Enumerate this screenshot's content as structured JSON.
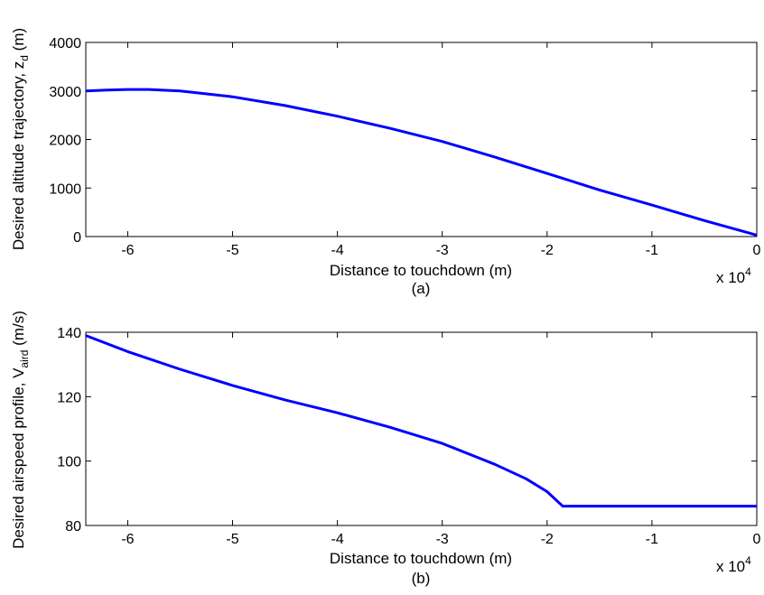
{
  "chart_data": [
    {
      "type": "line",
      "panel_label": "(a)",
      "xlabel": "Distance to touchdown (m)",
      "ylabel_main": "Desired altitude trajectory, z",
      "ylabel_sub": "d",
      "ylabel_unit": " (m)",
      "x_multiplier": "x 10",
      "x_multiplier_exp": "4",
      "xlim": [
        -6.4,
        0
      ],
      "ylim": [
        0,
        4000
      ],
      "xticks": [
        -6,
        -5,
        -4,
        -3,
        -2,
        -1,
        0
      ],
      "yticks": [
        0,
        1000,
        2000,
        3000,
        4000
      ],
      "grid": false,
      "series": [
        {
          "color": "#0000ff",
          "x": [
            -6.4,
            -6.2,
            -6.0,
            -5.8,
            -5.5,
            -5.0,
            -4.5,
            -4.0,
            -3.5,
            -3.0,
            -2.5,
            -2.0,
            -1.5,
            -1.0,
            -0.5,
            0.0
          ],
          "y": [
            3000,
            3020,
            3030,
            3030,
            3000,
            2880,
            2700,
            2480,
            2230,
            1960,
            1640,
            1300,
            960,
            650,
            330,
            30
          ]
        }
      ]
    },
    {
      "type": "line",
      "panel_label": "(b)",
      "xlabel": "Distance to touchdown (m)",
      "ylabel_main": "Desired airspeed profile, V",
      "ylabel_sub": "aird",
      "ylabel_unit": " (m/s)",
      "x_multiplier": "x 10",
      "x_multiplier_exp": "4",
      "xlim": [
        -6.4,
        0
      ],
      "ylim": [
        80,
        140
      ],
      "xticks": [
        -6,
        -5,
        -4,
        -3,
        -2,
        -1,
        0
      ],
      "yticks": [
        80,
        100,
        120,
        140
      ],
      "grid": false,
      "series": [
        {
          "color": "#0000ff",
          "x": [
            -6.4,
            -6.0,
            -5.5,
            -5.0,
            -4.5,
            -4.0,
            -3.5,
            -3.0,
            -2.5,
            -2.2,
            -2.0,
            -1.9,
            -1.85,
            -1.0,
            0.0
          ],
          "y": [
            139,
            134,
            128.5,
            123.5,
            119,
            115,
            110.5,
            105.5,
            99,
            94.5,
            90.5,
            87.5,
            86,
            86,
            86
          ]
        }
      ]
    }
  ]
}
